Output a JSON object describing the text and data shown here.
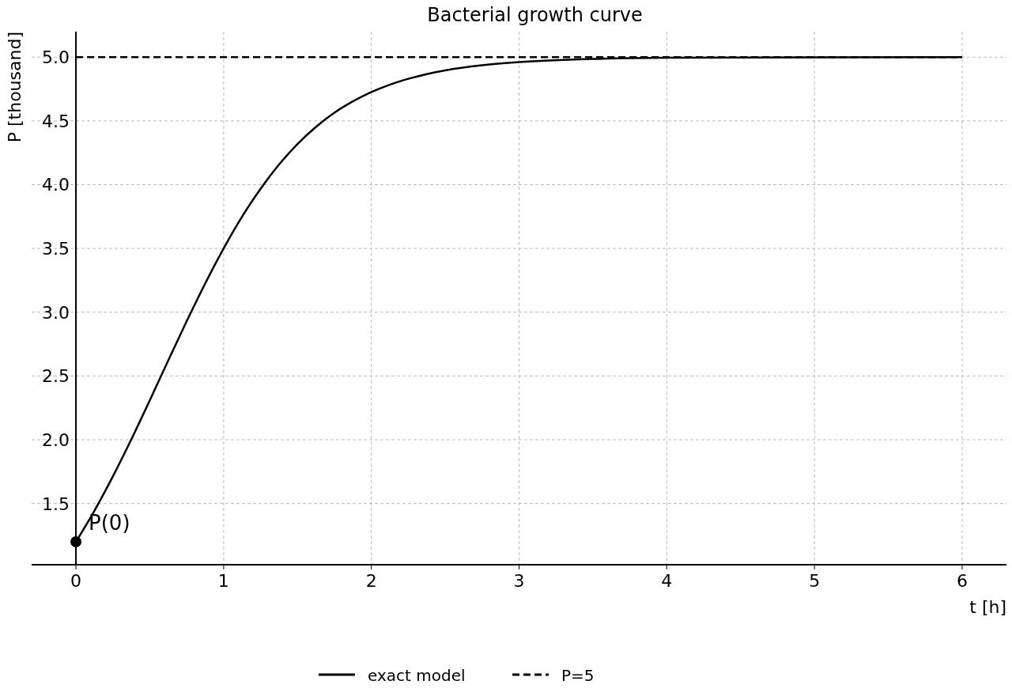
{
  "chart_data": {
    "type": "line",
    "title": "Bacterial growth curve",
    "xlabel": "t [h]",
    "ylabel": "P [thousand]",
    "xlim": [
      -0.3,
      6.3
    ],
    "ylim": [
      1.02,
      5.2
    ],
    "xticks": [
      0,
      1,
      2,
      3,
      4,
      5,
      6
    ],
    "yticks": [
      {
        "value": 1.5,
        "label": "1.5"
      },
      {
        "value": 2,
        "label": "2.0"
      },
      {
        "value": 2.5,
        "label": "2.5"
      },
      {
        "value": 3,
        "label": "3.0"
      },
      {
        "value": 3.5,
        "label": "3.5"
      },
      {
        "value": 4,
        "label": "4.0"
      },
      {
        "value": 4.5,
        "label": "4.5"
      },
      {
        "value": 5,
        "label": "5.0"
      }
    ],
    "grid": true,
    "legend": "bottom",
    "series": [
      {
        "name": "exact model",
        "color": "#000000",
        "line_style": "solid",
        "x": [
          0,
          0.125,
          0.25,
          0.375,
          0.5,
          0.625,
          0.75,
          0.875,
          1,
          1.125,
          1.25,
          1.375,
          1.5,
          1.625,
          1.75,
          1.875,
          2,
          2.125,
          2.25,
          2.375,
          2.5,
          2.75,
          3,
          3.5,
          4,
          5,
          6
        ],
        "values": [
          1.2,
          1.443,
          1.712,
          2.003,
          2.309,
          2.622,
          2.93,
          3.225,
          3.5,
          3.749,
          3.968,
          4.158,
          4.319,
          4.453,
          4.564,
          4.653,
          4.726,
          4.784,
          4.83,
          4.867,
          4.896,
          4.936,
          4.961,
          4.986,
          4.995,
          4.999,
          5.0
        ]
      },
      {
        "name": "P=5",
        "color": "#000000",
        "line_style": "dashed",
        "x": [
          0,
          6
        ],
        "values": [
          5,
          5
        ]
      },
      {
        "type": "scatter",
        "color": "#000000",
        "marker": "circle",
        "x": [
          0
        ],
        "values": [
          1.2
        ]
      }
    ],
    "annotations": [
      {
        "text": "P(0)",
        "x": 0,
        "y": 1.2
      }
    ]
  }
}
